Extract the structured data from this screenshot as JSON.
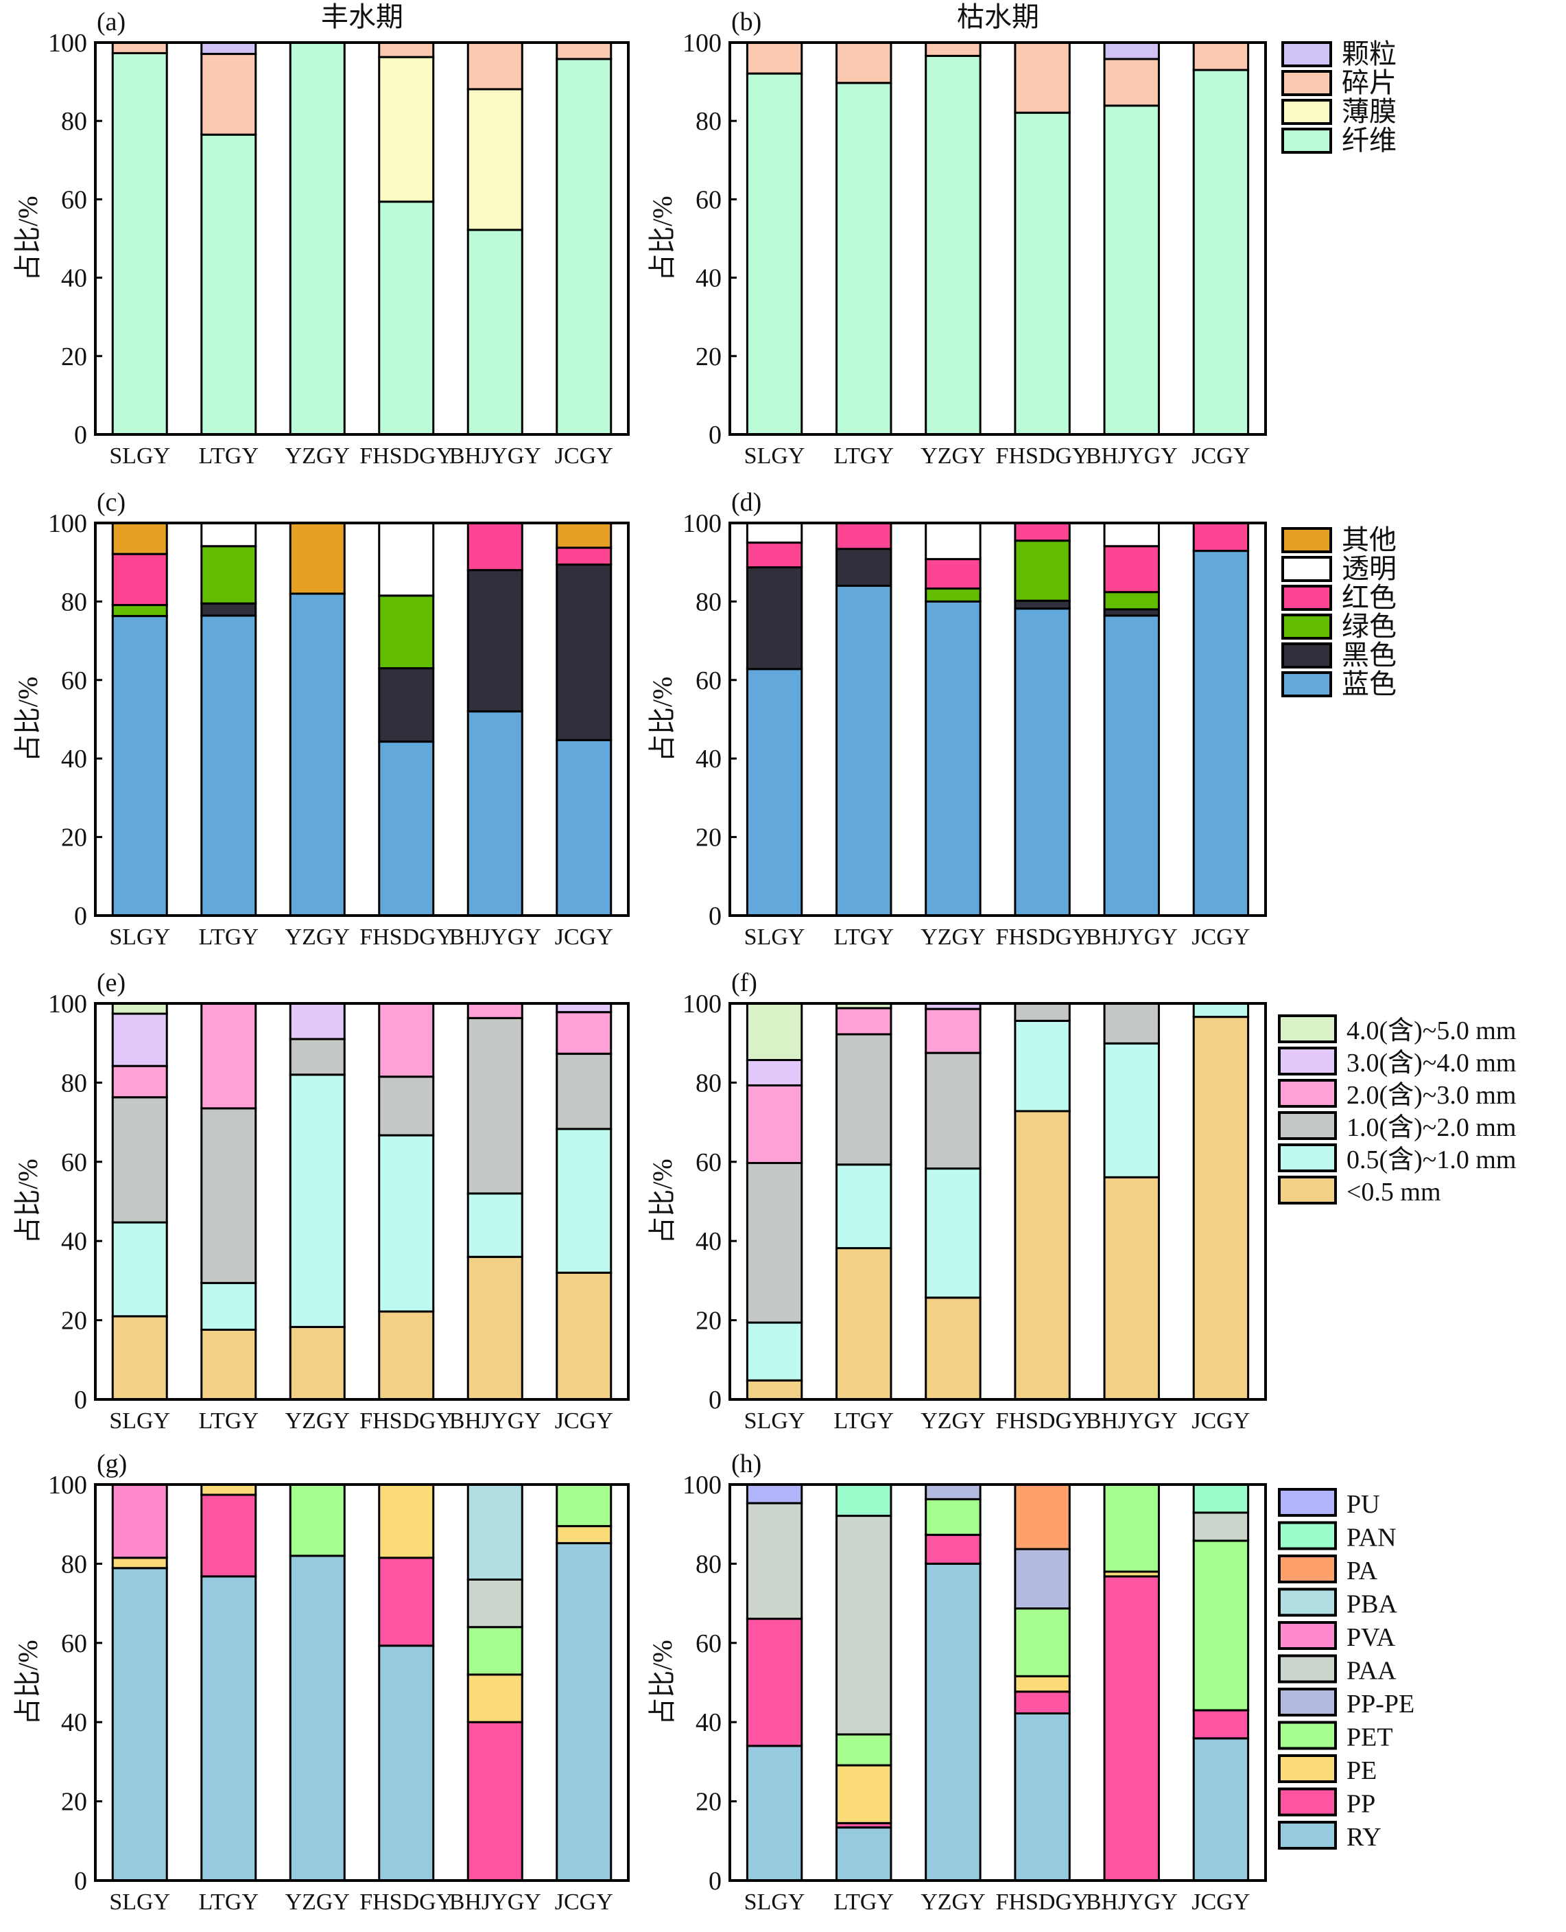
{
  "figure": {
    "column_titles": [
      "丰水期",
      "枯水期"
    ],
    "y_axis_label": "占比/%"
  },
  "chart_data": [
    {
      "id": "a",
      "panel_label": "(a)",
      "type": "bar",
      "stacked": true,
      "title": "丰水期",
      "xlabel": "",
      "ylabel": "占比/%",
      "ylim": [
        0,
        100
      ],
      "yticks": [
        0,
        20,
        40,
        60,
        80,
        100
      ],
      "categories": [
        "SLGY",
        "LTGY",
        "YZGY",
        "FHSDGY",
        "BHJYGY",
        "JCGY"
      ],
      "legend_ref": "shape",
      "series": [
        {
          "name": "纤维",
          "color": "#bbfbd8",
          "values": [
            97.3,
            76.5,
            100,
            59.4,
            52.2,
            95.8
          ]
        },
        {
          "name": "薄膜",
          "color": "#fbfcc5",
          "values": [
            0,
            0,
            0,
            36.9,
            35.9,
            0
          ]
        },
        {
          "name": "碎片",
          "color": "#fbc8b0",
          "values": [
            2.7,
            20.6,
            0,
            3.7,
            11.9,
            4.2
          ]
        },
        {
          "name": "颗粒",
          "color": "#d1c2f5",
          "values": [
            0,
            2.9,
            0,
            0,
            0,
            0
          ]
        }
      ]
    },
    {
      "id": "b",
      "panel_label": "(b)",
      "type": "bar",
      "stacked": true,
      "title": "枯水期",
      "xlabel": "",
      "ylabel": "占比/%",
      "ylim": [
        0,
        100
      ],
      "yticks": [
        0,
        20,
        40,
        60,
        80,
        100
      ],
      "categories": [
        "SLGY",
        "LTGY",
        "YZGY",
        "FHSDGY",
        "BHJYGY",
        "JCGY"
      ],
      "legend_ref": "shape",
      "series": [
        {
          "name": "纤维",
          "color": "#bbfbd8",
          "values": [
            92.1,
            89.7,
            96.6,
            82.1,
            83.9,
            93.0
          ]
        },
        {
          "name": "薄膜",
          "color": "#fbfcc5",
          "values": [
            0,
            0,
            0,
            0,
            0,
            0
          ]
        },
        {
          "name": "碎片",
          "color": "#fbc8b0",
          "values": [
            7.9,
            10.3,
            3.4,
            17.9,
            11.9,
            7.0
          ]
        },
        {
          "name": "颗粒",
          "color": "#d1c2f5",
          "values": [
            0,
            0,
            0,
            0,
            4.2,
            0
          ]
        }
      ]
    },
    {
      "id": "c",
      "panel_label": "(c)",
      "type": "bar",
      "stacked": true,
      "title": "",
      "xlabel": "",
      "ylabel": "占比/%",
      "ylim": [
        0,
        100
      ],
      "yticks": [
        0,
        20,
        40,
        60,
        80,
        100
      ],
      "categories": [
        "SLGY",
        "LTGY",
        "YZGY",
        "FHSDGY",
        "BHJYGY",
        "JCGY"
      ],
      "legend_ref": "color",
      "series": [
        {
          "name": "蓝色",
          "color": "#62a8da",
          "values": [
            76.3,
            76.4,
            82.0,
            44.3,
            52.0,
            44.7
          ]
        },
        {
          "name": "黑色",
          "color": "#30303d",
          "values": [
            0,
            3.1,
            0,
            18.7,
            36.0,
            44.7
          ]
        },
        {
          "name": "绿色",
          "color": "#62bd00",
          "values": [
            2.8,
            14.6,
            0,
            18.5,
            0,
            0
          ]
        },
        {
          "name": "红色",
          "color": "#fd4594",
          "values": [
            13.0,
            0,
            0,
            0,
            12.0,
            4.3
          ]
        },
        {
          "name": "透明",
          "color": "#ffffff",
          "values": [
            0,
            5.9,
            0,
            18.5,
            0,
            0
          ]
        },
        {
          "name": "其他",
          "color": "#e6a023",
          "values": [
            7.9,
            0,
            18.0,
            0,
            0,
            6.3
          ]
        }
      ]
    },
    {
      "id": "d",
      "panel_label": "(d)",
      "type": "bar",
      "stacked": true,
      "title": "",
      "xlabel": "",
      "ylabel": "占比/%",
      "ylim": [
        0,
        100
      ],
      "yticks": [
        0,
        20,
        40,
        60,
        80,
        100
      ],
      "categories": [
        "SLGY",
        "LTGY",
        "YZGY",
        "FHSDGY",
        "BHJYGY",
        "JCGY"
      ],
      "legend_ref": "color",
      "series": [
        {
          "name": "蓝色",
          "color": "#62a8da",
          "values": [
            62.8,
            84.0,
            80.0,
            78.2,
            76.4,
            92.9
          ]
        },
        {
          "name": "黑色",
          "color": "#30303d",
          "values": [
            25.9,
            9.4,
            0,
            2.0,
            1.6,
            0
          ]
        },
        {
          "name": "绿色",
          "color": "#62bd00",
          "values": [
            0,
            0,
            3.3,
            15.3,
            4.4,
            0
          ]
        },
        {
          "name": "红色",
          "color": "#fd4594",
          "values": [
            6.3,
            6.6,
            7.5,
            4.5,
            11.7,
            7.1
          ]
        },
        {
          "name": "透明",
          "color": "#ffffff",
          "values": [
            5.0,
            0,
            9.2,
            0,
            5.9,
            0
          ]
        },
        {
          "name": "其他",
          "color": "#e6a023",
          "values": [
            0,
            0,
            0,
            0,
            0,
            0
          ]
        }
      ]
    },
    {
      "id": "e",
      "panel_label": "(e)",
      "type": "bar",
      "stacked": true,
      "title": "",
      "xlabel": "",
      "ylabel": "占比/%",
      "ylim": [
        0,
        100
      ],
      "yticks": [
        0,
        20,
        40,
        60,
        80,
        100
      ],
      "categories": [
        "SLGY",
        "LTGY",
        "YZGY",
        "FHSDGY",
        "BHJYGY",
        "JCGY"
      ],
      "legend_ref": "size",
      "series": [
        {
          "name": "<0.5 mm",
          "color": "#f2d086",
          "values": [
            21.0,
            17.6,
            18.3,
            22.2,
            36.0,
            32.0
          ]
        },
        {
          "name": "0.5(含)~1.0 mm",
          "color": "#bffaf0",
          "values": [
            23.7,
            11.8,
            63.7,
            44.5,
            16.0,
            36.3
          ]
        },
        {
          "name": "1.0(含)~2.0 mm",
          "color": "#c4c8c4",
          "values": [
            31.6,
            44.1,
            9.0,
            14.8,
            44.3,
            19.0
          ]
        },
        {
          "name": "2.0(含)~3.0 mm",
          "color": "#fda1d6",
          "values": [
            7.9,
            26.5,
            0,
            18.5,
            3.7,
            10.5
          ]
        },
        {
          "name": "3.0(含)~4.0 mm",
          "color": "#e2c8fb",
          "values": [
            13.2,
            0,
            9.0,
            0,
            0,
            2.2
          ]
        },
        {
          "name": "4.0(含)~5.0 mm",
          "color": "#daf0c6",
          "values": [
            2.6,
            0,
            0,
            0,
            0,
            0
          ]
        }
      ]
    },
    {
      "id": "f",
      "panel_label": "(f)",
      "type": "bar",
      "stacked": true,
      "title": "",
      "xlabel": "",
      "ylabel": "占比/%",
      "ylim": [
        0,
        100
      ],
      "yticks": [
        0,
        20,
        40,
        60,
        80,
        100
      ],
      "categories": [
        "SLGY",
        "LTGY",
        "YZGY",
        "FHSDGY",
        "BHJYGY",
        "JCGY"
      ],
      "legend_ref": "size",
      "series": [
        {
          "name": "<0.5 mm",
          "color": "#f2d086",
          "values": [
            4.8,
            38.2,
            25.7,
            72.8,
            56.1,
            96.6
          ]
        },
        {
          "name": "0.5(含)~1.0 mm",
          "color": "#bffaf0",
          "values": [
            14.6,
            21.1,
            32.6,
            22.8,
            33.8,
            3.4
          ]
        },
        {
          "name": "1.0(含)~2.0 mm",
          "color": "#c4c8c4",
          "values": [
            40.3,
            32.9,
            29.2,
            4.4,
            10.1,
            0
          ]
        },
        {
          "name": "2.0(含)~3.0 mm",
          "color": "#fda1d6",
          "values": [
            19.6,
            6.6,
            11.1,
            0,
            0,
            0
          ]
        },
        {
          "name": "3.0(含)~4.0 mm",
          "color": "#e2c8fb",
          "values": [
            6.4,
            0,
            1.4,
            0,
            0,
            0
          ]
        },
        {
          "name": "4.0(含)~5.0 mm",
          "color": "#daf0c6",
          "values": [
            14.3,
            1.2,
            0,
            0,
            0,
            0
          ]
        }
      ]
    },
    {
      "id": "g",
      "panel_label": "(g)",
      "type": "bar",
      "stacked": true,
      "title": "",
      "xlabel": "",
      "ylabel": "占比/%",
      "ylim": [
        0,
        100
      ],
      "yticks": [
        0,
        20,
        40,
        60,
        80,
        100
      ],
      "categories": [
        "SLGY",
        "LTGY",
        "YZGY",
        "FHSDGY",
        "BHJYGY",
        "JCGY"
      ],
      "legend_ref": "polymer",
      "series": [
        {
          "name": "RY",
          "color": "#96cbdf",
          "values": [
            78.9,
            76.8,
            82.0,
            59.3,
            0,
            85.2
          ]
        },
        {
          "name": "PP",
          "color": "#fe55a2",
          "values": [
            0,
            20.6,
            0,
            22.2,
            40.0,
            0
          ]
        },
        {
          "name": "PE",
          "color": "#fadb77",
          "values": [
            2.6,
            2.6,
            0,
            18.5,
            12.0,
            4.3
          ]
        },
        {
          "name": "PET",
          "color": "#a6fe8f",
          "values": [
            0,
            0,
            18.0,
            0,
            12.0,
            10.5
          ]
        },
        {
          "name": "PP-PE",
          "color": "#b2bae0",
          "values": [
            0,
            0,
            0,
            0,
            0,
            0
          ]
        },
        {
          "name": "PAA",
          "color": "#cbd5cc",
          "values": [
            0,
            0,
            0,
            0,
            12.0,
            0
          ]
        },
        {
          "name": "PVA",
          "color": "#fe89cc",
          "values": [
            18.5,
            0,
            0,
            0,
            0,
            0
          ]
        },
        {
          "name": "PBA",
          "color": "#b0dee2",
          "values": [
            0,
            0,
            0,
            0,
            24.0,
            0
          ]
        },
        {
          "name": "PA",
          "color": "#fea06c",
          "values": [
            0,
            0,
            0,
            0,
            0,
            0
          ]
        },
        {
          "name": "PAN",
          "color": "#9bfdcb",
          "values": [
            0,
            0,
            0,
            0,
            0,
            0
          ]
        },
        {
          "name": "PU",
          "color": "#b1b4fb",
          "values": [
            0,
            0,
            0,
            0,
            0,
            0
          ]
        }
      ]
    },
    {
      "id": "h",
      "panel_label": "(h)",
      "type": "bar",
      "stacked": true,
      "title": "",
      "xlabel": "",
      "ylabel": "占比/%",
      "ylim": [
        0,
        100
      ],
      "yticks": [
        0,
        20,
        40,
        60,
        80,
        100
      ],
      "categories": [
        "SLGY",
        "LTGY",
        "YZGY",
        "FHSDGY",
        "BHJYGY",
        "JCGY"
      ],
      "legend_ref": "polymer",
      "series": [
        {
          "name": "RY",
          "color": "#96cbdf",
          "values": [
            34.0,
            13.4,
            80.0,
            42.2,
            0,
            35.9
          ]
        },
        {
          "name": "PP",
          "color": "#fe55a2",
          "values": [
            32.1,
            1.1,
            7.3,
            5.5,
            76.8,
            7.1
          ]
        },
        {
          "name": "PE",
          "color": "#fadb77",
          "values": [
            0,
            14.6,
            0,
            3.9,
            1.2,
            0
          ]
        },
        {
          "name": "PET",
          "color": "#a6fe8f",
          "values": [
            0,
            7.8,
            9.0,
            17.1,
            22.0,
            42.8
          ]
        },
        {
          "name": "PP-PE",
          "color": "#b2bae0",
          "values": [
            0,
            0,
            3.7,
            15.0,
            0,
            0
          ]
        },
        {
          "name": "PAA",
          "color": "#cbd5cc",
          "values": [
            29.2,
            55.2,
            0,
            0,
            0,
            7.1
          ]
        },
        {
          "name": "PVA",
          "color": "#fe89cc",
          "values": [
            0,
            0,
            0,
            0,
            0,
            0
          ]
        },
        {
          "name": "PBA",
          "color": "#b0dee2",
          "values": [
            0,
            0,
            0,
            0,
            0,
            0
          ]
        },
        {
          "name": "PA",
          "color": "#fea06c",
          "values": [
            0,
            0,
            0,
            16.3,
            0,
            0
          ]
        },
        {
          "name": "PAN",
          "color": "#9bfdcb",
          "values": [
            0,
            7.9,
            0,
            0,
            0,
            7.1
          ]
        },
        {
          "name": "PU",
          "color": "#b1b4fb",
          "values": [
            4.7,
            0,
            0,
            0,
            0,
            0
          ]
        }
      ]
    }
  ],
  "legends": {
    "shape": {
      "entries": [
        {
          "label": "颗粒",
          "color": "#d1c2f5"
        },
        {
          "label": "碎片",
          "color": "#fbc8b0"
        },
        {
          "label": "薄膜",
          "color": "#fbfcc5"
        },
        {
          "label": "纤维",
          "color": "#bbfbd8"
        }
      ]
    },
    "color": {
      "entries": [
        {
          "label": "其他",
          "color": "#e6a023"
        },
        {
          "label": "透明",
          "color": "#ffffff"
        },
        {
          "label": "红色",
          "color": "#fd4594"
        },
        {
          "label": "绿色",
          "color": "#62bd00"
        },
        {
          "label": "黑色",
          "color": "#30303d"
        },
        {
          "label": "蓝色",
          "color": "#62a8da"
        }
      ]
    },
    "size": {
      "entries": [
        {
          "label": "4.0(含)~5.0 mm",
          "color": "#daf0c6"
        },
        {
          "label": "3.0(含)~4.0 mm",
          "color": "#e2c8fb"
        },
        {
          "label": "2.0(含)~3.0 mm",
          "color": "#fda1d6"
        },
        {
          "label": "1.0(含)~2.0 mm",
          "color": "#c4c8c4"
        },
        {
          "label": "0.5(含)~1.0 mm",
          "color": "#bffaf0"
        },
        {
          "label": "<0.5 mm",
          "color": "#f2d086"
        }
      ]
    },
    "polymer": {
      "entries": [
        {
          "label": "PU",
          "color": "#b1b4fb"
        },
        {
          "label": "PAN",
          "color": "#9bfdcb"
        },
        {
          "label": "PA",
          "color": "#fea06c"
        },
        {
          "label": "PBA",
          "color": "#b0dee2"
        },
        {
          "label": "PVA",
          "color": "#fe89cc"
        },
        {
          "label": "PAA",
          "color": "#cbd5cc"
        },
        {
          "label": "PP-PE",
          "color": "#b2bae0"
        },
        {
          "label": "PET",
          "color": "#a6fe8f"
        },
        {
          "label": "PE",
          "color": "#fadb77"
        },
        {
          "label": "PP",
          "color": "#fe55a2"
        },
        {
          "label": "RY",
          "color": "#96cbdf"
        }
      ]
    }
  }
}
